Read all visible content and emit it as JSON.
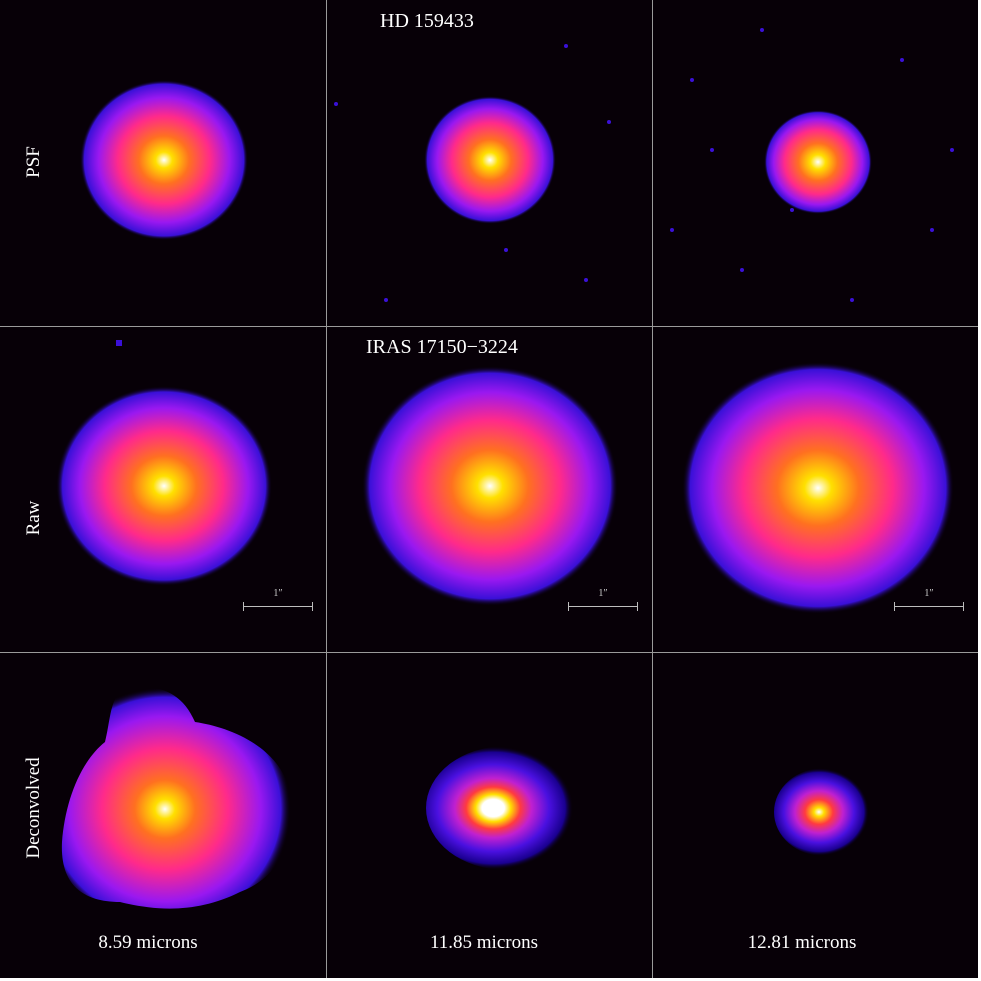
{
  "figure": {
    "row_titles": {
      "psf": "HD 159433",
      "raw": "IRAS 17150−3224"
    },
    "row_labels": {
      "psf": "PSF",
      "raw": "Raw",
      "deconvolved": "Deconvolved"
    },
    "wavelengths": [
      "8.59 microns",
      "11.85 microns",
      "12.81 microns"
    ],
    "scalebar_label": "1″",
    "colormap": [
      "#070007",
      "#2a00c8",
      "#8a10f0",
      "#ff2090",
      "#ff6020",
      "#ffd000",
      "#ffffff"
    ]
  }
}
